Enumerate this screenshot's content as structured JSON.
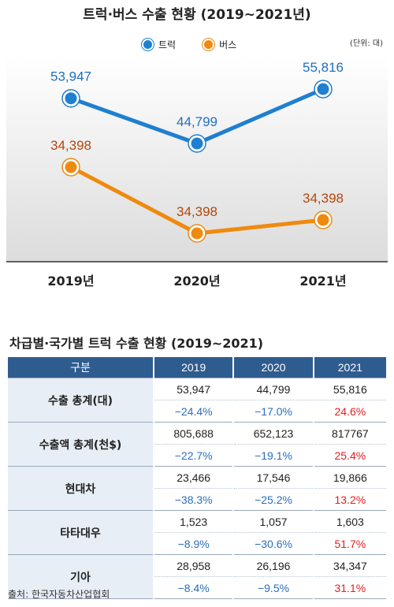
{
  "chart_title": "트럭·버스 수출 현황 (2019~2021년)",
  "unit": "(단위: 대)",
  "legend": [
    {
      "name": "트럭",
      "color": "#1f7fd0"
    },
    {
      "name": "버스",
      "color": "#ef8a10"
    }
  ],
  "chart_data": {
    "type": "line",
    "title": "트럭·버스 수출 현황 (2019~2021년)",
    "categories": [
      "2019년",
      "2020년",
      "2021년"
    ],
    "series": [
      {
        "name": "트럭",
        "values": [
          53947,
          44799,
          55816
        ],
        "labels": [
          "53,947",
          "44,799",
          "55,816"
        ],
        "color": "#1f7fd0",
        "label_color": "#1f6fc0"
      },
      {
        "name": "버스",
        "values": [
          34398,
          34398,
          34398
        ],
        "labels": [
          "34,398",
          "34,398",
          "34,398"
        ],
        "color": "#ef8a10",
        "label_color": "#b5460a"
      }
    ],
    "xlabel": "",
    "ylabel": "",
    "grid": false,
    "legend_position": "top"
  },
  "table": {
    "title": "차급별·국가별 트럭 수출 현황 (2019~2021)",
    "header": [
      "구분",
      "2019",
      "2020",
      "2021"
    ],
    "rows": [
      {
        "category": "수출 총계(대)",
        "values": [
          "53,947",
          "44,799",
          "55,816"
        ],
        "changes": [
          "−24.4%",
          "−17.0%",
          "24.6%"
        ]
      },
      {
        "category": "수출액 총계(천$)",
        "values": [
          "805,688",
          "652,123",
          "817767"
        ],
        "changes": [
          "−22.7%",
          "−19.1%",
          "25.4%"
        ]
      },
      {
        "category": "현대차",
        "values": [
          "23,466",
          "17,546",
          "19,866"
        ],
        "changes": [
          "−38.3%",
          "−25.2%",
          "13.2%"
        ]
      },
      {
        "category": "타타대우",
        "values": [
          "1,523",
          "1,057",
          "1,603"
        ],
        "changes": [
          "−8.9%",
          "−30.6%",
          "51.7%"
        ]
      },
      {
        "category": "기아",
        "values": [
          "28,958",
          "26,196",
          "34,347"
        ],
        "changes": [
          "−8.4%",
          "−9.5%",
          "31.1%"
        ]
      }
    ]
  },
  "source": "출처: 한국자동차산업협회",
  "colors": {
    "header_bg": "#2f5c8f",
    "category_bg": "#e8eef6",
    "negative": "#2a6ebc",
    "positive": "#e02020"
  }
}
